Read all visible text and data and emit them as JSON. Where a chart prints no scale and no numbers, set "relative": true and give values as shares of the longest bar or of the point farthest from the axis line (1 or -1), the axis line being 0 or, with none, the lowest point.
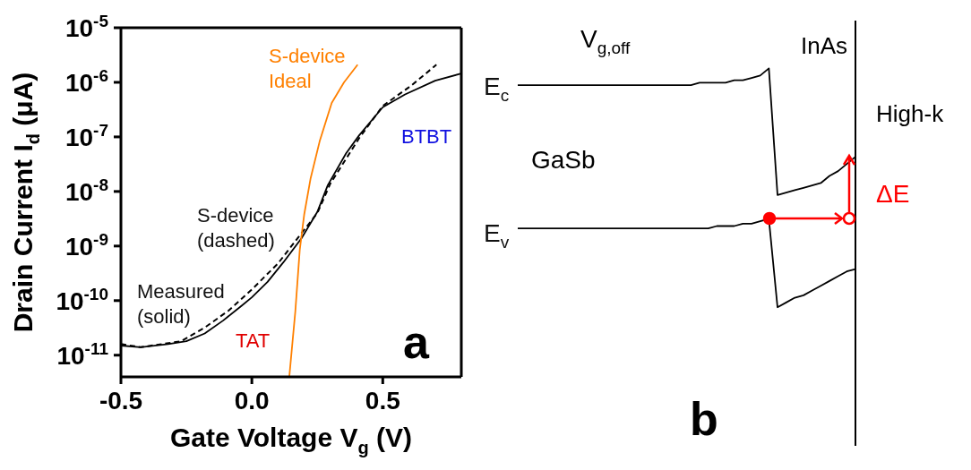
{
  "chart_data": [
    {
      "type": "line",
      "xlabel": "Gate Voltage V$_{g}$ (V)",
      "ylabel": "Drain Current I$_{d}$ (μA)",
      "log": "y",
      "xlim": [
        -0.5,
        0.8
      ],
      "ylim": [
        4e-12,
        1e-05
      ],
      "xticks": [
        -0.5,
        {
          "value": 0,
          "label": "0.0"
        },
        0.5
      ],
      "yticks": [
        {
          "value": 1e-11,
          "label": "10$^{-11}$"
        },
        {
          "value": 1e-10,
          "label": "10$^{-10}$"
        },
        {
          "value": 1e-09,
          "label": "10$^{-9}$"
        },
        {
          "value": 1e-08,
          "label": "10$^{-8}$"
        },
        {
          "value": 1e-07,
          "label": "10$^{-7}$"
        },
        {
          "value": 1e-06,
          "label": "10$^{-6}$"
        },
        {
          "value": 1e-05,
          "label": "10$^{-5}$"
        }
      ],
      "marker": "none",
      "legend": false,
      "grid": false,
      "series": [
        {
          "name": "Measured (solid)",
          "color": "#000000",
          "line_style": "solid",
          "x": [
            -0.5,
            -0.425,
            -0.32,
            -0.25,
            -0.18,
            -0.11,
            -0.04,
            0.0,
            0.06,
            0.12,
            0.19,
            0.25,
            0.29,
            0.36,
            0.41,
            0.5,
            0.585,
            0.7,
            0.8
          ],
          "values": [
            1.5e-11,
            1.4e-11,
            1.6e-11,
            1.8e-11,
            2.5e-11,
            4.3e-11,
            8e-11,
            1.15e-10,
            2.2e-10,
            5e-10,
            1.4e-09,
            4.2e-09,
            1.3e-08,
            5e-08,
            1.07e-07,
            3.5e-07,
            6e-07,
            1.07e-06,
            1.45e-06
          ]
        },
        {
          "name": "S-device (dashed)",
          "color": "#000000",
          "line_style": "dashed",
          "x": [
            -0.5,
            -0.425,
            -0.27,
            -0.18,
            -0.09,
            0.0,
            0.1,
            0.18,
            0.25,
            0.3,
            0.41,
            0.5,
            0.61,
            0.705
          ],
          "values": [
            1.6e-11,
            1.4e-11,
            1.8e-11,
            3.2e-11,
            6.5e-11,
            1.6e-10,
            4.8e-10,
            1.5e-09,
            4e-09,
            1.4e-08,
            9.5e-08,
            3.7e-07,
            8.8e-07,
            2.1e-06
          ]
        },
        {
          "name": "S-device Ideal",
          "color": "#ff8000",
          "line_style": "solid",
          "x": [
            0.143,
            0.166,
            0.183,
            0.2,
            0.224,
            0.259,
            0.305,
            0.352,
            0.404
          ],
          "values": [
            4e-12,
            6.3e-11,
            8.5e-10,
            3.8e-09,
            1.7e-08,
            8.3e-08,
            4.2e-07,
            1e-06,
            2.1e-06
          ]
        }
      ],
      "annotations": [
        "TAT",
        "BTBT",
        "a"
      ]
    },
    {
      "type": "line",
      "relative": true,
      "marker": "none",
      "categories": [
        null,
        null,
        null,
        null,
        null,
        null,
        null,
        null,
        null,
        null,
        null,
        null,
        null,
        null,
        null,
        null,
        null,
        null,
        null,
        null,
        null,
        null,
        null,
        null,
        null,
        null,
        null,
        null,
        null,
        null,
        null,
        null,
        null,
        null,
        null,
        null,
        null,
        null,
        null,
        null
      ],
      "series": [
        {
          "name": "E$_{c}$",
          "color": "#000000",
          "values": [
            0.93,
            0.93,
            0.93,
            0.93,
            0.93,
            0.93,
            0.93,
            0.93,
            0.93,
            0.93,
            0.93,
            0.93,
            0.93,
            0.93,
            0.93,
            0.93,
            0.93,
            0.93,
            0.93,
            0.93,
            0.93,
            0.94,
            0.94,
            0.94,
            0.94,
            0.95,
            0.95,
            0.96,
            0.97,
            1.0,
            0.47,
            0.48,
            0.49,
            0.5,
            0.51,
            0.52,
            0.55,
            0.57,
            0.6,
            0.63
          ]
        },
        {
          "name": "E$_{v}$",
          "color": "#000000",
          "values": [
            0.33,
            0.33,
            0.33,
            0.33,
            0.33,
            0.33,
            0.33,
            0.33,
            0.33,
            0.33,
            0.33,
            0.33,
            0.33,
            0.33,
            0.33,
            0.33,
            0.33,
            0.33,
            0.33,
            0.33,
            0.33,
            0.33,
            0.33,
            0.34,
            0.34,
            0.34,
            0.35,
            0.35,
            0.36,
            0.37,
            0.0,
            0.02,
            0.04,
            0.05,
            0.07,
            0.09,
            0.11,
            0.13,
            0.15,
            0.16
          ]
        }
      ],
      "annotations": [
        "V$_{g,off}$",
        "InAs",
        "High-k",
        "GaSb",
        "ΔE",
        "b"
      ]
    }
  ]
}
